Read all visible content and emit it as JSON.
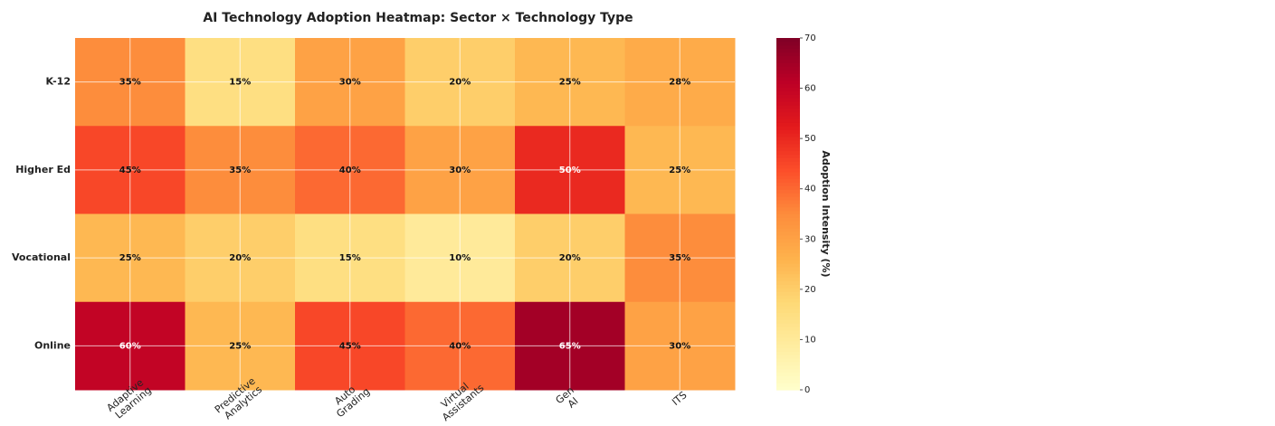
{
  "chart_data": {
    "type": "heatmap",
    "title": "AI Technology Adoption Heatmap: Sector × Technology Type",
    "x_categories": [
      "Adaptive Learning",
      "Predictive Analytics",
      "Auto Grading",
      "Virtual Assistants",
      "Gen AI",
      "ITS"
    ],
    "y_categories": [
      "K-12",
      "Higher Ed",
      "Vocational",
      "Online"
    ],
    "values": [
      [
        35,
        15,
        30,
        20,
        25,
        28
      ],
      [
        45,
        35,
        40,
        30,
        50,
        25
      ],
      [
        25,
        20,
        15,
        10,
        20,
        35
      ],
      [
        60,
        25,
        45,
        40,
        65,
        30
      ]
    ],
    "value_labels": [
      [
        "35%",
        "15%",
        "30%",
        "20%",
        "25%",
        "28%"
      ],
      [
        "45%",
        "35%",
        "40%",
        "30%",
        "50%",
        "25%"
      ],
      [
        "25%",
        "20%",
        "15%",
        "10%",
        "20%",
        "35%"
      ],
      [
        "60%",
        "25%",
        "45%",
        "40%",
        "65%",
        "30%"
      ]
    ],
    "colormap": "YlOrRd",
    "zlim": [
      0,
      70
    ],
    "colorbar_ticks": [
      0,
      10,
      20,
      30,
      40,
      50,
      60,
      70
    ],
    "colorbar_label": "Adoption Intensity (%)",
    "grid": true
  }
}
